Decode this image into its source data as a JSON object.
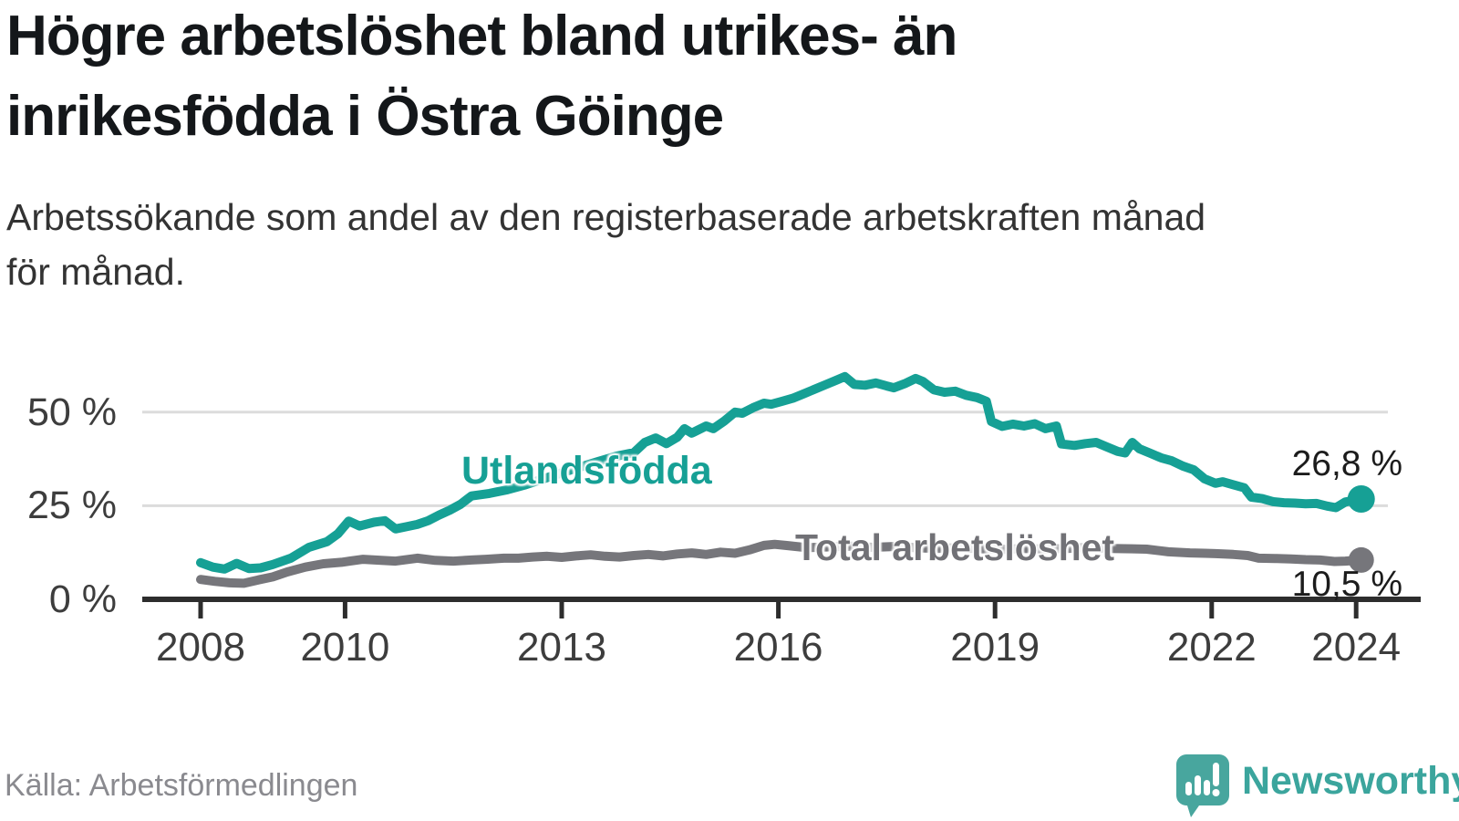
{
  "header": {
    "title": "Högre arbetslöshet bland utrikes- än\ninrikesfödda i Östra Göinge",
    "subtitle": "Arbetssökande som andel av den registerbaserade arbetskraften månad\nför månad."
  },
  "chart_data": {
    "type": "line",
    "unit": "percent",
    "grid": "horizontal",
    "legend_position": "inline-on-lines",
    "xlim": [
      2007.15,
      2024.6
    ],
    "ylim": [
      0,
      62
    ],
    "x_ticks": [
      2008,
      2010,
      2013,
      2016,
      2019,
      2022,
      2024
    ],
    "y_ticks": [
      0,
      25,
      50
    ],
    "y_tick_labels": [
      "0 %",
      "25 %",
      "50 %"
    ],
    "series": [
      {
        "name": "Utlandsfödda",
        "color": "#16a095",
        "end_label": "26,8 %",
        "end_value": 26.8,
        "points": [
          [
            2008.0,
            9.8
          ],
          [
            2008.17,
            8.6
          ],
          [
            2008.33,
            8.1
          ],
          [
            2008.5,
            9.6
          ],
          [
            2008.67,
            8.2
          ],
          [
            2008.83,
            8.4
          ],
          [
            2009.0,
            9.3
          ],
          [
            2009.25,
            11.0
          ],
          [
            2009.5,
            13.9
          ],
          [
            2009.75,
            15.4
          ],
          [
            2009.9,
            17.5
          ],
          [
            2010.05,
            20.9
          ],
          [
            2010.2,
            19.6
          ],
          [
            2010.4,
            20.6
          ],
          [
            2010.55,
            21.0
          ],
          [
            2010.7,
            18.8
          ],
          [
            2010.85,
            19.4
          ],
          [
            2011.0,
            20.0
          ],
          [
            2011.15,
            21.0
          ],
          [
            2011.3,
            22.5
          ],
          [
            2011.45,
            23.8
          ],
          [
            2011.6,
            25.4
          ],
          [
            2011.75,
            27.6
          ],
          [
            2012.0,
            28.3
          ],
          [
            2012.25,
            29.3
          ],
          [
            2012.5,
            30.6
          ],
          [
            2012.75,
            32.2
          ],
          [
            2013.0,
            33.8
          ],
          [
            2013.25,
            35.3
          ],
          [
            2013.5,
            36.8
          ],
          [
            2013.75,
            38.2
          ],
          [
            2014.0,
            39.2
          ],
          [
            2014.15,
            41.9
          ],
          [
            2014.3,
            43.1
          ],
          [
            2014.45,
            41.6
          ],
          [
            2014.6,
            43.3
          ],
          [
            2014.7,
            45.6
          ],
          [
            2014.8,
            44.4
          ],
          [
            2015.0,
            46.3
          ],
          [
            2015.1,
            45.6
          ],
          [
            2015.25,
            47.6
          ],
          [
            2015.4,
            50.0
          ],
          [
            2015.5,
            49.7
          ],
          [
            2015.65,
            51.2
          ],
          [
            2015.8,
            52.4
          ],
          [
            2015.9,
            52.1
          ],
          [
            2016.05,
            52.9
          ],
          [
            2016.2,
            53.7
          ],
          [
            2016.35,
            54.9
          ],
          [
            2016.5,
            56.1
          ],
          [
            2016.65,
            57.3
          ],
          [
            2016.8,
            58.5
          ],
          [
            2016.92,
            59.5
          ],
          [
            2017.05,
            57.4
          ],
          [
            2017.2,
            57.2
          ],
          [
            2017.35,
            57.8
          ],
          [
            2017.5,
            57.0
          ],
          [
            2017.6,
            56.5
          ],
          [
            2017.75,
            57.6
          ],
          [
            2017.9,
            59.0
          ],
          [
            2018.0,
            58.2
          ],
          [
            2018.15,
            56.0
          ],
          [
            2018.3,
            55.3
          ],
          [
            2018.45,
            55.6
          ],
          [
            2018.6,
            54.5
          ],
          [
            2018.75,
            53.9
          ],
          [
            2018.88,
            52.9
          ],
          [
            2018.95,
            47.5
          ],
          [
            2019.1,
            46.2
          ],
          [
            2019.25,
            46.8
          ],
          [
            2019.4,
            46.3
          ],
          [
            2019.55,
            46.9
          ],
          [
            2019.7,
            45.6
          ],
          [
            2019.85,
            46.3
          ],
          [
            2019.92,
            41.5
          ],
          [
            2020.1,
            41.1
          ],
          [
            2020.25,
            41.6
          ],
          [
            2020.4,
            41.9
          ],
          [
            2020.55,
            40.7
          ],
          [
            2020.7,
            39.5
          ],
          [
            2020.8,
            39.1
          ],
          [
            2020.9,
            41.9
          ],
          [
            2021.0,
            40.2
          ],
          [
            2021.15,
            39.0
          ],
          [
            2021.3,
            37.8
          ],
          [
            2021.45,
            37.0
          ],
          [
            2021.6,
            35.6
          ],
          [
            2021.75,
            34.6
          ],
          [
            2021.9,
            32.2
          ],
          [
            2022.05,
            31.0
          ],
          [
            2022.15,
            31.4
          ],
          [
            2022.3,
            30.6
          ],
          [
            2022.45,
            29.8
          ],
          [
            2022.55,
            27.3
          ],
          [
            2022.7,
            26.9
          ],
          [
            2022.85,
            26.1
          ],
          [
            2023.0,
            25.8
          ],
          [
            2023.15,
            25.7
          ],
          [
            2023.3,
            25.5
          ],
          [
            2023.45,
            25.6
          ],
          [
            2023.6,
            24.9
          ],
          [
            2023.72,
            24.5
          ],
          [
            2023.85,
            26.0
          ],
          [
            2024.07,
            26.8
          ]
        ]
      },
      {
        "name": "Total arbetslöshet",
        "color": "#76767b",
        "end_label": "10,5 %",
        "end_value": 10.5,
        "points": [
          [
            2008.0,
            5.3
          ],
          [
            2008.2,
            4.8
          ],
          [
            2008.4,
            4.4
          ],
          [
            2008.6,
            4.3
          ],
          [
            2008.8,
            5.2
          ],
          [
            2009.0,
            6.0
          ],
          [
            2009.2,
            7.3
          ],
          [
            2009.45,
            8.6
          ],
          [
            2009.7,
            9.5
          ],
          [
            2009.95,
            9.9
          ],
          [
            2010.25,
            10.7
          ],
          [
            2010.5,
            10.4
          ],
          [
            2010.7,
            10.2
          ],
          [
            2011.0,
            11.0
          ],
          [
            2011.25,
            10.4
          ],
          [
            2011.5,
            10.2
          ],
          [
            2011.75,
            10.5
          ],
          [
            2011.95,
            10.7
          ],
          [
            2012.2,
            11.0
          ],
          [
            2012.4,
            11.0
          ],
          [
            2012.6,
            11.3
          ],
          [
            2012.8,
            11.5
          ],
          [
            2013.0,
            11.2
          ],
          [
            2013.2,
            11.6
          ],
          [
            2013.4,
            11.9
          ],
          [
            2013.6,
            11.5
          ],
          [
            2013.8,
            11.3
          ],
          [
            2014.0,
            11.7
          ],
          [
            2014.2,
            12.0
          ],
          [
            2014.4,
            11.6
          ],
          [
            2014.6,
            12.1
          ],
          [
            2014.8,
            12.4
          ],
          [
            2015.0,
            12.0
          ],
          [
            2015.2,
            12.6
          ],
          [
            2015.4,
            12.3
          ],
          [
            2015.6,
            13.2
          ],
          [
            2015.8,
            14.4
          ],
          [
            2015.95,
            14.7
          ],
          [
            2016.1,
            14.4
          ],
          [
            2016.4,
            13.8
          ],
          [
            2016.7,
            14.0
          ],
          [
            2017.0,
            14.2
          ],
          [
            2017.3,
            13.9
          ],
          [
            2017.6,
            14.1
          ],
          [
            2017.9,
            13.8
          ],
          [
            2018.2,
            13.6
          ],
          [
            2018.5,
            13.8
          ],
          [
            2018.8,
            13.5
          ],
          [
            2019.1,
            13.3
          ],
          [
            2019.4,
            13.6
          ],
          [
            2019.7,
            13.4
          ],
          [
            2020.0,
            13.6
          ],
          [
            2020.3,
            13.9
          ],
          [
            2020.6,
            13.6
          ],
          [
            2020.9,
            13.5
          ],
          [
            2021.1,
            13.4
          ],
          [
            2021.4,
            12.7
          ],
          [
            2021.7,
            12.4
          ],
          [
            2021.9,
            12.3
          ],
          [
            2022.05,
            12.2
          ],
          [
            2022.3,
            12.0
          ],
          [
            2022.5,
            11.7
          ],
          [
            2022.65,
            11.0
          ],
          [
            2022.9,
            10.9
          ],
          [
            2023.1,
            10.8
          ],
          [
            2023.3,
            10.6
          ],
          [
            2023.5,
            10.5
          ],
          [
            2023.7,
            10.1
          ],
          [
            2023.85,
            10.2
          ],
          [
            2024.07,
            10.5
          ]
        ]
      }
    ]
  },
  "footer": {
    "source": "Källa: Arbetsförmedlingen",
    "brand": "Newsworthy"
  },
  "colors": {
    "accent_teal": "#16a095",
    "line_gray": "#76767b",
    "axis": "#2d2d2d",
    "gridline": "#dcdcdc",
    "title_text": "#14171a",
    "tick_text": "#3d3d3d",
    "source_text": "#8a8a8f",
    "brand_teal": "#3ba59d",
    "logo_bubble": "#48a69e"
  }
}
